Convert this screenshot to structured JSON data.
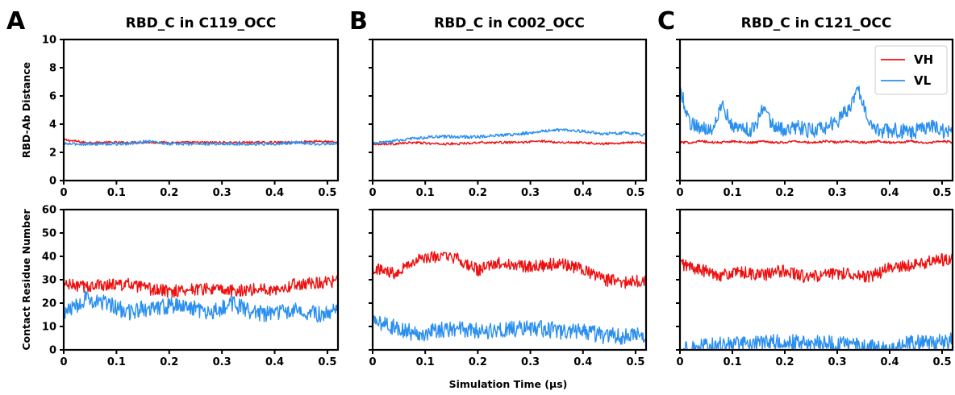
{
  "figure": {
    "xlabel": "Simulation Time (μs)",
    "panels": [
      {
        "letter": "A",
        "title": "RBD_C in C119_OCC"
      },
      {
        "letter": "B",
        "title": "RBD_C in C002_OCC"
      },
      {
        "letter": "C",
        "title": "RBD_C in C121_OCC"
      }
    ],
    "rows": [
      {
        "ylabel": "RBD-Ab Distance",
        "ylim": [
          0,
          10
        ],
        "yticks": [
          0,
          2,
          4,
          6,
          8,
          10
        ]
      },
      {
        "ylabel": "Contact Residue Number",
        "ylim": [
          0,
          60
        ],
        "yticks": [
          0,
          10,
          20,
          30,
          40,
          50,
          60
        ]
      }
    ],
    "xlim": [
      0,
      0.52
    ],
    "xticks": [
      "0",
      "0.1",
      "0.2",
      "0.3",
      "0.4",
      "0.5"
    ],
    "legend": {
      "placement": "top-right",
      "panel": "C-top",
      "entries": [
        "VH",
        "VL"
      ]
    },
    "colors": {
      "VH": "#ee1111",
      "VL": "#2a8fef"
    }
  },
  "chart_data": [
    {
      "type": "line",
      "panel": "A",
      "title": "RBD_C in C119_OCC",
      "xlabel": "",
      "ylabel": "RBD-Ab Distance",
      "xlim": [
        0,
        0.52
      ],
      "ylim": [
        0,
        10
      ],
      "grid": false,
      "x": [
        0,
        0.04,
        0.08,
        0.12,
        0.16,
        0.2,
        0.24,
        0.28,
        0.32,
        0.36,
        0.4,
        0.44,
        0.48,
        0.52
      ],
      "series": [
        {
          "name": "VH",
          "values": [
            2.9,
            2.7,
            2.7,
            2.7,
            2.7,
            2.7,
            2.7,
            2.7,
            2.7,
            2.7,
            2.7,
            2.7,
            2.8,
            2.7
          ]
        },
        {
          "name": "VL",
          "values": [
            2.6,
            2.6,
            2.6,
            2.6,
            2.8,
            2.6,
            2.6,
            2.6,
            2.6,
            2.6,
            2.6,
            2.7,
            2.6,
            2.6
          ]
        }
      ]
    },
    {
      "type": "line",
      "panel": "B",
      "title": "RBD_C in C002_OCC",
      "xlabel": "",
      "ylabel": "",
      "xlim": [
        0,
        0.52
      ],
      "ylim": [
        0,
        10
      ],
      "grid": false,
      "x": [
        0,
        0.04,
        0.08,
        0.12,
        0.16,
        0.2,
        0.24,
        0.28,
        0.32,
        0.36,
        0.4,
        0.44,
        0.48,
        0.52
      ],
      "series": [
        {
          "name": "VH",
          "values": [
            2.6,
            2.6,
            2.7,
            2.6,
            2.6,
            2.7,
            2.7,
            2.7,
            2.8,
            2.7,
            2.7,
            2.6,
            2.7,
            2.7
          ]
        },
        {
          "name": "VL",
          "values": [
            2.6,
            2.8,
            3.0,
            3.1,
            3.1,
            3.1,
            3.2,
            3.3,
            3.5,
            3.6,
            3.5,
            3.3,
            3.4,
            3.2
          ]
        }
      ]
    },
    {
      "type": "line",
      "panel": "C",
      "title": "RBD_C in C121_OCC",
      "xlabel": "",
      "ylabel": "",
      "xlim": [
        0,
        0.52
      ],
      "ylim": [
        0,
        10
      ],
      "grid": false,
      "x": [
        0,
        0.02,
        0.04,
        0.06,
        0.08,
        0.1,
        0.12,
        0.14,
        0.16,
        0.18,
        0.2,
        0.22,
        0.24,
        0.26,
        0.28,
        0.3,
        0.32,
        0.34,
        0.36,
        0.38,
        0.4,
        0.42,
        0.44,
        0.46,
        0.48,
        0.5,
        0.52
      ],
      "series": [
        {
          "name": "VH",
          "values": [
            2.7,
            2.7,
            2.8,
            2.7,
            2.7,
            2.8,
            2.7,
            2.7,
            2.8,
            2.7,
            2.7,
            2.8,
            2.7,
            2.7,
            2.8,
            2.7,
            2.8,
            2.7,
            2.7,
            2.8,
            2.7,
            2.7,
            2.8,
            2.7,
            2.7,
            2.8,
            2.7
          ]
        },
        {
          "name": "VL",
          "values": [
            6.5,
            4.0,
            3.8,
            3.6,
            5.5,
            3.8,
            3.7,
            3.6,
            5.2,
            3.7,
            3.6,
            3.8,
            3.6,
            3.5,
            3.8,
            4.2,
            5.0,
            6.6,
            4.5,
            3.4,
            3.6,
            3.5,
            3.4,
            3.6,
            3.8,
            3.5,
            3.7
          ]
        }
      ]
    },
    {
      "type": "line",
      "panel": "A",
      "title": "",
      "xlabel": "",
      "ylabel": "Contact Residue Number",
      "xlim": [
        0,
        0.52
      ],
      "ylim": [
        0,
        60
      ],
      "grid": false,
      "x": [
        0,
        0.04,
        0.08,
        0.12,
        0.16,
        0.2,
        0.24,
        0.28,
        0.32,
        0.36,
        0.4,
        0.44,
        0.48,
        0.52
      ],
      "series": [
        {
          "name": "VH",
          "values": [
            28,
            27,
            28,
            28,
            26,
            25,
            26,
            26,
            25,
            26,
            26,
            28,
            29,
            29
          ]
        },
        {
          "name": "VL",
          "values": [
            15,
            22,
            20,
            16,
            18,
            19,
            18,
            16,
            20,
            16,
            15,
            18,
            15,
            18
          ]
        }
      ]
    },
    {
      "type": "line",
      "panel": "B",
      "title": "",
      "xlabel": "Simulation Time (μs)",
      "ylabel": "",
      "xlim": [
        0,
        0.52
      ],
      "ylim": [
        0,
        60
      ],
      "grid": false,
      "x": [
        0,
        0.04,
        0.08,
        0.12,
        0.16,
        0.2,
        0.24,
        0.28,
        0.32,
        0.36,
        0.4,
        0.44,
        0.48,
        0.52
      ],
      "series": [
        {
          "name": "VH",
          "values": [
            35,
            33,
            38,
            40,
            39,
            34,
            37,
            36,
            36,
            37,
            34,
            30,
            29,
            30
          ]
        },
        {
          "name": "VL",
          "values": [
            12,
            10,
            7,
            8,
            9,
            8,
            8,
            9,
            9,
            8,
            8,
            6,
            6,
            7
          ]
        }
      ]
    },
    {
      "type": "line",
      "panel": "C",
      "title": "",
      "xlabel": "",
      "ylabel": "",
      "xlim": [
        0,
        0.52
      ],
      "ylim": [
        0,
        60
      ],
      "grid": false,
      "x": [
        0,
        0.04,
        0.08,
        0.12,
        0.16,
        0.2,
        0.24,
        0.28,
        0.32,
        0.36,
        0.4,
        0.44,
        0.48,
        0.52
      ],
      "series": [
        {
          "name": "VH",
          "values": [
            37,
            34,
            32,
            33,
            32,
            34,
            31,
            32,
            33,
            31,
            35,
            36,
            38,
            39
          ]
        },
        {
          "name": "VL",
          "values": [
            0,
            1,
            2,
            2,
            3,
            3,
            3,
            3,
            2,
            1,
            0,
            3,
            3,
            4
          ]
        }
      ]
    }
  ]
}
